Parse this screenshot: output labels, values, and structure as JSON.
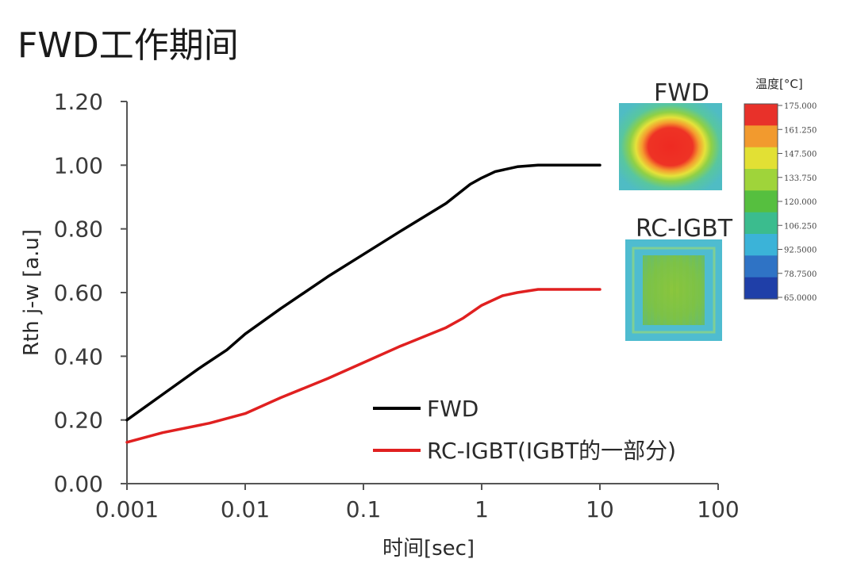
{
  "chart_data": {
    "type": "line",
    "title": "FWD工作期间",
    "xlabel": "时间[sec]",
    "ylabel": "Rth j-w [a.u]",
    "xscale": "log",
    "xlim": [
      0.001,
      100
    ],
    "ylim": [
      0,
      1.2
    ],
    "x_ticks": [
      "0.001",
      "0.01",
      "0.1",
      "1",
      "10",
      "100"
    ],
    "y_ticks": [
      "0.00",
      "0.20",
      "0.40",
      "0.60",
      "0.80",
      "1.00",
      "1.20"
    ],
    "grid": false,
    "legend_position": "lower-right",
    "series": [
      {
        "name": "FWD",
        "color": "#000000",
        "x": [
          0.001,
          0.002,
          0.004,
          0.007,
          0.01,
          0.02,
          0.05,
          0.1,
          0.2,
          0.5,
          0.8,
          1.0,
          1.3,
          2.0,
          3.0,
          5.0,
          10.0
        ],
        "y": [
          0.2,
          0.28,
          0.36,
          0.42,
          0.47,
          0.55,
          0.65,
          0.72,
          0.79,
          0.88,
          0.94,
          0.96,
          0.98,
          0.995,
          1.0,
          1.0,
          1.0
        ]
      },
      {
        "name": "RC-IGBT(IGBT的一部分)",
        "color": "#e02020",
        "x": [
          0.001,
          0.002,
          0.005,
          0.01,
          0.02,
          0.05,
          0.1,
          0.2,
          0.5,
          0.7,
          1.0,
          1.5,
          2.0,
          3.0,
          5.0,
          10.0
        ],
        "y": [
          0.13,
          0.16,
          0.19,
          0.22,
          0.27,
          0.33,
          0.38,
          0.43,
          0.49,
          0.52,
          0.56,
          0.59,
          0.6,
          0.61,
          0.61,
          0.61
        ]
      }
    ],
    "thumbnails": [
      {
        "label": "FWD"
      },
      {
        "label": "RC-IGBT"
      }
    ],
    "colorbar": {
      "title": "温度[°C]",
      "ticks": [
        "175.000",
        "161.250",
        "147.500",
        "133.750",
        "120.000",
        "106.250",
        "92.5000",
        "78.7500",
        "65.0000"
      ],
      "colors": [
        "#e8312a",
        "#f29a2e",
        "#e2e034",
        "#9fd43a",
        "#56bf3f",
        "#3bbc8e",
        "#3bb3d8",
        "#2f73c5",
        "#1f3fa8"
      ]
    }
  }
}
